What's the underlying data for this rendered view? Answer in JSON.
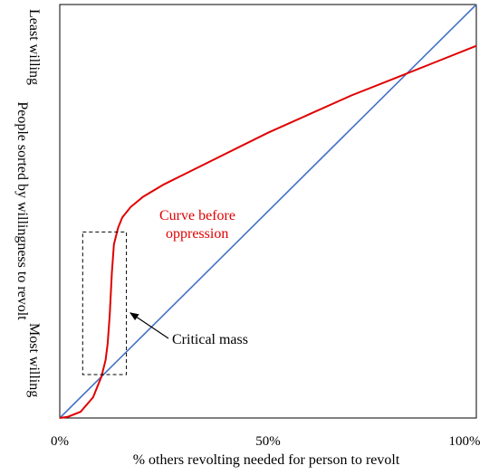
{
  "chart_data": {
    "type": "line",
    "xlabel": "% others revolting needed for person to revolt",
    "ylabel": "People sorted by willingness to revolt",
    "y_top_label": "Least willing",
    "y_bottom_label": "Most willing",
    "x_ticks": [
      "0%",
      "50%",
      "100%"
    ],
    "xlim": [
      0,
      100
    ],
    "ylim": [
      0,
      100
    ],
    "grid": false,
    "series": [
      {
        "color": "#4472c4",
        "x": [
          0,
          100
        ],
        "y": [
          0,
          100
        ]
      },
      {
        "color": "#e00000",
        "x": [
          0,
          2,
          5,
          8,
          10,
          11,
          11.5,
          12,
          12.5,
          13,
          14,
          15,
          17,
          20,
          25,
          30,
          40,
          50,
          60,
          70,
          80,
          90,
          100
        ],
        "y": [
          0,
          0.3,
          1.5,
          5,
          10,
          14,
          18,
          25,
          35,
          42,
          46,
          48.5,
          51,
          53.5,
          56.5,
          59,
          64,
          69,
          73.5,
          78,
          82,
          86,
          90
        ]
      }
    ],
    "annotations": [
      {
        "text": "Curve before",
        "line2": "oppression",
        "color": "#e00000"
      },
      {
        "text": "Critical mass",
        "color": "#000000"
      }
    ],
    "critical_mass_box": {
      "x0": 5.5,
      "x1": 16,
      "y0": 10.5,
      "y1": 45
    },
    "critical_mass_arrow_to": {
      "x": 16.5,
      "y": 25
    }
  }
}
